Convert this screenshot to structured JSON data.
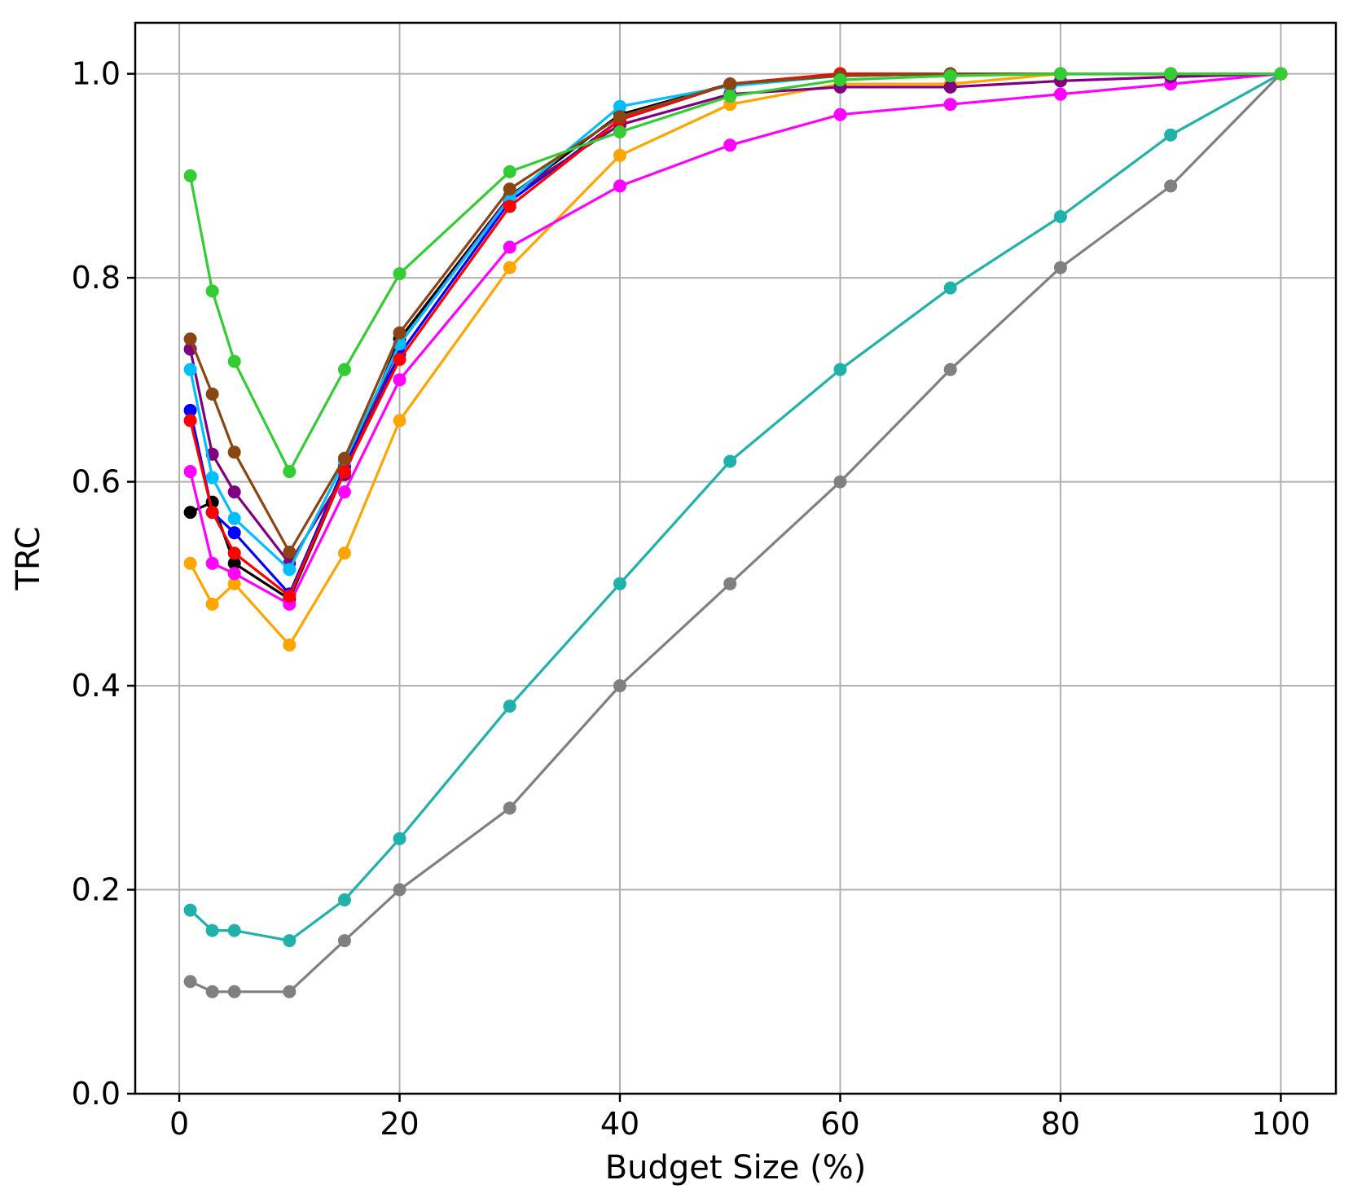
{
  "chart_data": {
    "type": "line",
    "xlabel": "Budget Size (%)",
    "ylabel": "TRC",
    "xlim": [
      -4,
      105
    ],
    "ylim": [
      0,
      1.05
    ],
    "xticks": [
      0,
      20,
      40,
      60,
      80,
      100
    ],
    "yticks": [
      0.0,
      0.2,
      0.4,
      0.6,
      0.8,
      1.0
    ],
    "xtick_labels": [
      "0",
      "20",
      "40",
      "60",
      "80",
      "100"
    ],
    "ytick_labels": [
      "0.0",
      "0.2",
      "0.4",
      "0.6",
      "0.8",
      "1.0"
    ],
    "grid": true,
    "x": [
      1,
      3,
      5,
      10,
      15,
      20,
      30,
      40,
      50,
      60,
      70,
      80,
      90,
      100
    ],
    "series": [
      {
        "color": "#808080",
        "values": [
          0.11,
          0.1,
          0.1,
          0.1,
          0.15,
          0.2,
          0.28,
          0.4,
          0.5,
          0.6,
          0.71,
          0.81,
          0.89,
          1.0
        ]
      },
      {
        "color": "#20b2aa",
        "values": [
          0.18,
          0.16,
          0.16,
          0.15,
          0.19,
          0.25,
          0.38,
          0.5,
          0.62,
          0.71,
          0.79,
          0.86,
          0.94,
          1.0
        ]
      },
      {
        "color": "#000000",
        "values": [
          0.57,
          0.58,
          0.52,
          0.485,
          0.61,
          0.74,
          0.88,
          0.96,
          0.99,
          1.0,
          1.0,
          1.0,
          1.0,
          1.0
        ]
      },
      {
        "color": "#0000ff",
        "values": [
          0.67,
          0.57,
          0.55,
          0.49,
          0.615,
          0.725,
          0.875,
          0.955,
          0.99,
          0.998,
          1.0,
          1.0,
          1.0,
          1.0
        ]
      },
      {
        "color": "#ffa500",
        "values": [
          0.52,
          0.48,
          0.5,
          0.44,
          0.53,
          0.66,
          0.81,
          0.92,
          0.97,
          0.99,
          0.99,
          1.0,
          1.0,
          1.0
        ]
      },
      {
        "color": "#ff00ff",
        "values": [
          0.61,
          0.52,
          0.51,
          0.48,
          0.59,
          0.7,
          0.83,
          0.89,
          0.93,
          0.96,
          0.97,
          0.98,
          0.99,
          1.0
        ]
      },
      {
        "color": "#800080",
        "values": [
          0.73,
          0.627,
          0.59,
          0.52,
          0.607,
          0.735,
          0.88,
          0.95,
          0.98,
          0.987,
          0.987,
          0.993,
          0.997,
          1.0
        ]
      },
      {
        "color": "#00bfff",
        "values": [
          0.71,
          0.604,
          0.564,
          0.514,
          0.62,
          0.735,
          0.878,
          0.968,
          0.988,
          0.998,
          1.0,
          1.0,
          1.0,
          1.0
        ]
      },
      {
        "color": "#ff0000",
        "values": [
          0.66,
          0.57,
          0.53,
          0.488,
          0.61,
          0.72,
          0.87,
          0.955,
          0.99,
          1.0,
          1.0,
          1.0,
          1.0,
          1.0
        ]
      },
      {
        "color": "#8b4513",
        "values": [
          0.74,
          0.686,
          0.629,
          0.531,
          0.623,
          0.746,
          0.887,
          0.958,
          0.99,
          0.998,
          1.0,
          1.0,
          1.0,
          1.0
        ]
      },
      {
        "color": "#32cd32",
        "values": [
          0.9,
          0.787,
          0.718,
          0.61,
          0.71,
          0.804,
          0.904,
          0.943,
          0.978,
          0.994,
          0.998,
          1.0,
          1.0,
          1.0
        ]
      }
    ]
  }
}
